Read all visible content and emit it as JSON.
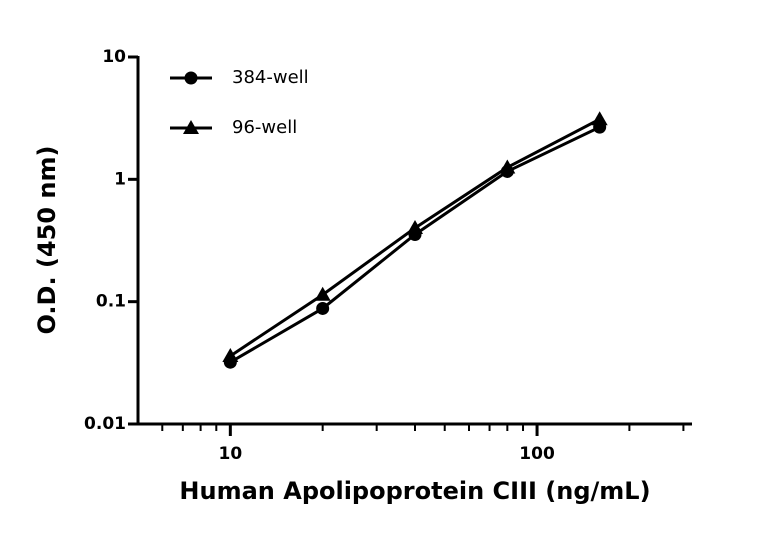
{
  "chart_data": {
    "type": "line",
    "x_label": "Human Apolipoprotein CIII (ng/mL)",
    "y_label": "O.D. (450 nm)",
    "x": [
      10,
      20,
      40,
      80,
      160
    ],
    "series": [
      {
        "name": "384-well",
        "color": "#000000",
        "marker": "circle",
        "values": [
          0.032,
          0.088,
          0.354,
          1.16,
          2.67
        ]
      },
      {
        "name": "96-well",
        "color": "#000000",
        "marker": "triangle",
        "values": [
          0.036,
          0.114,
          0.4,
          1.25,
          3.1
        ]
      }
    ],
    "xlim": [
      5,
      320
    ],
    "xticks": [
      10,
      100
    ],
    "xminorticks": [
      6,
      7,
      8,
      9,
      20,
      30,
      40,
      50,
      60,
      70,
      80,
      90,
      200,
      300
    ],
    "ylim": [
      0.01,
      10
    ],
    "yticks": [
      0.01,
      0.1,
      1,
      10
    ],
    "xscale": "log",
    "yscale": "log",
    "grid": false,
    "legend": "upper-left"
  }
}
